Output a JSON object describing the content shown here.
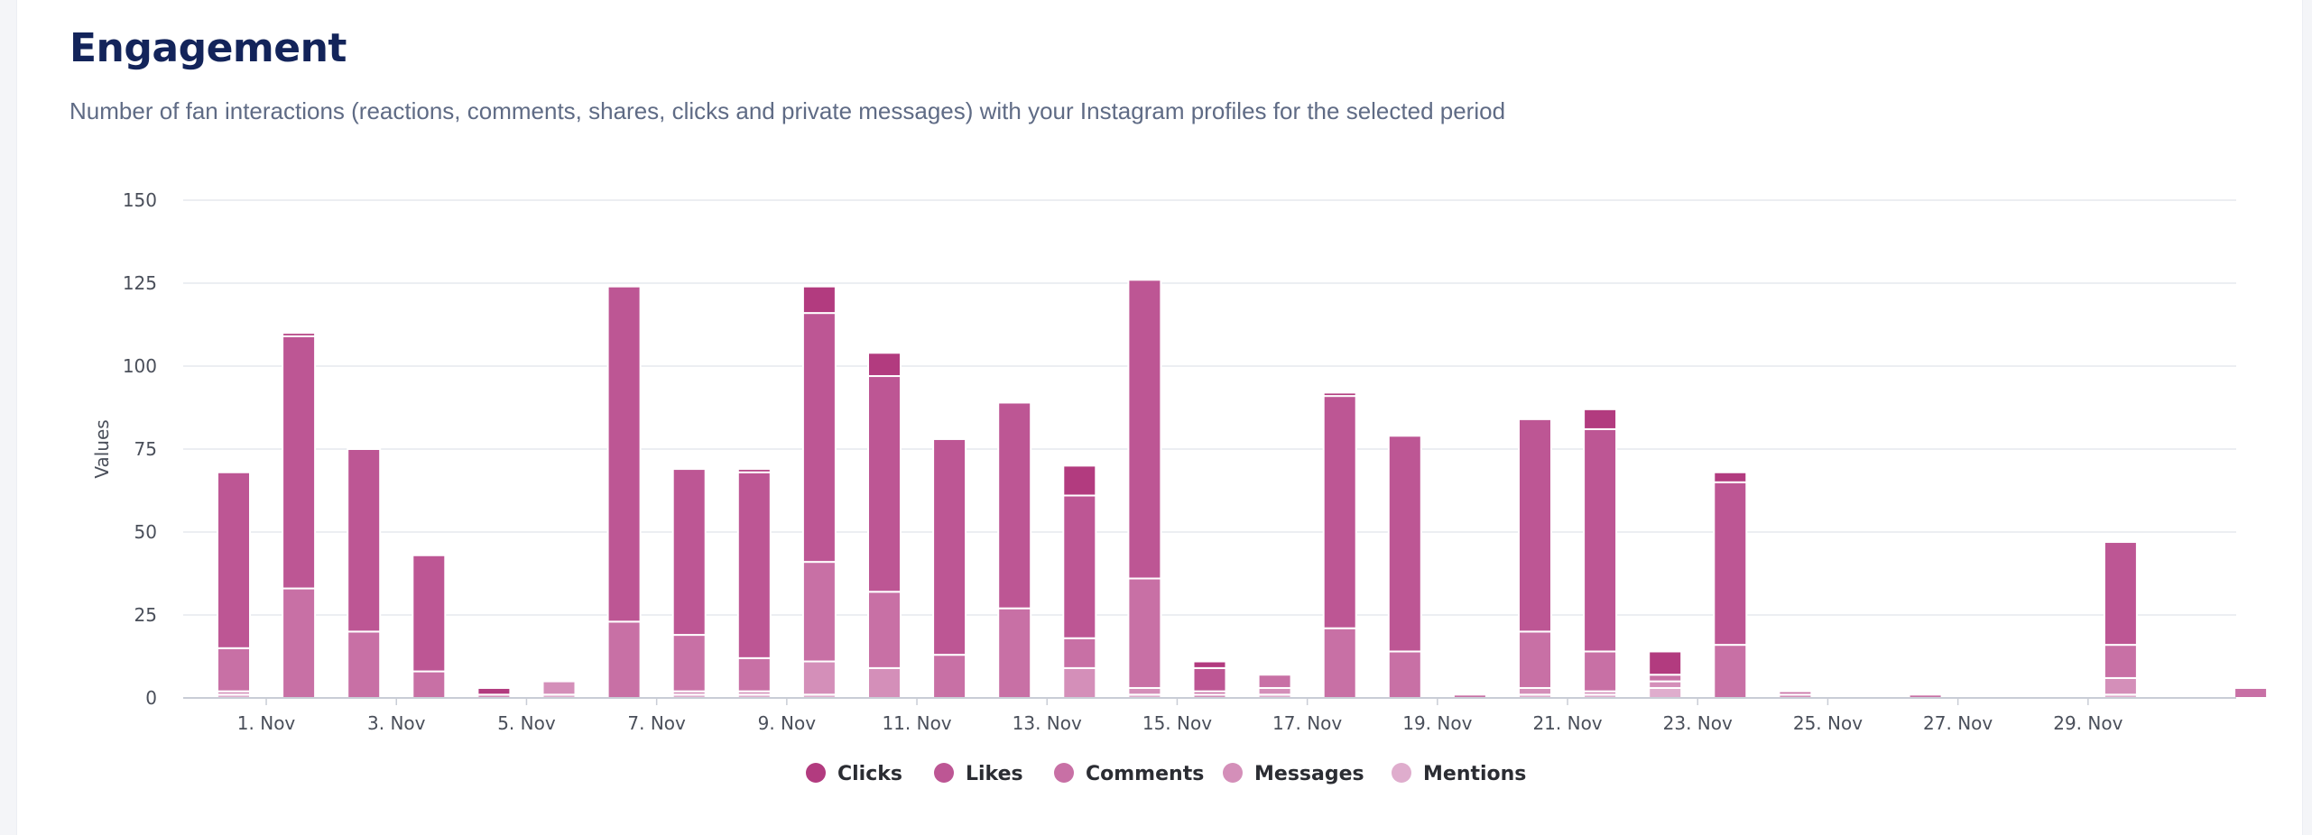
{
  "header": {
    "title": "Engagement",
    "subtitle": "Number of fan interactions (reactions, comments, shares, clicks and private messages) with your Instagram profiles for the selected period"
  },
  "chart_data": {
    "type": "bar",
    "stacked": true,
    "title": "Engagement",
    "ylabel": "Values",
    "xlabel": "",
    "ylim": [
      0,
      150
    ],
    "yticks": [
      0,
      25,
      50,
      75,
      100,
      125,
      150
    ],
    "categories": [
      "1. Nov",
      "2. Nov",
      "3. Nov",
      "4. Nov",
      "5. Nov",
      "6. Nov",
      "7. Nov",
      "8. Nov",
      "9. Nov",
      "10. Nov",
      "11. Nov",
      "12. Nov",
      "13. Nov",
      "14. Nov",
      "15. Nov",
      "16. Nov",
      "17. Nov",
      "18. Nov",
      "19. Nov",
      "20. Nov",
      "21. Nov",
      "22. Nov",
      "23. Nov",
      "24. Nov",
      "25. Nov",
      "26. Nov",
      "27. Nov",
      "28. Nov",
      "29. Nov",
      "30. Nov",
      "31. Nov",
      "32. Nov"
    ],
    "xtick_labels": [
      "1. Nov",
      "3. Nov",
      "5. Nov",
      "7. Nov",
      "9. Nov",
      "11. Nov",
      "13. Nov",
      "15. Nov",
      "17. Nov",
      "19. Nov",
      "21. Nov",
      "23. Nov",
      "25. Nov",
      "27. Nov",
      "29. Nov"
    ],
    "series": [
      {
        "name": "Clicks",
        "color": "#b23b7f",
        "values": [
          0,
          1,
          0,
          0,
          2,
          0,
          0,
          0,
          1,
          8,
          7,
          0,
          0,
          9,
          0,
          2,
          0,
          1,
          0,
          0,
          0,
          6,
          7,
          3,
          0,
          0,
          0,
          0,
          0,
          0,
          0,
          0
        ]
      },
      {
        "name": "Likes",
        "color": "#bd5694",
        "values": [
          53,
          76,
          55,
          35,
          0,
          0,
          101,
          50,
          56,
          75,
          65,
          65,
          62,
          43,
          90,
          7,
          0,
          70,
          65,
          0,
          64,
          67,
          0,
          49,
          0,
          0,
          0,
          0,
          0,
          31,
          0,
          0
        ]
      },
      {
        "name": "Comments",
        "color": "#c870a5",
        "values": [
          13,
          33,
          20,
          8,
          0,
          0,
          23,
          17,
          10,
          30,
          23,
          13,
          27,
          9,
          33,
          1,
          4,
          21,
          14,
          1,
          17,
          12,
          2,
          16,
          1,
          0,
          1,
          0,
          0,
          10,
          0,
          3
        ]
      },
      {
        "name": "Messages",
        "color": "#d48fb9",
        "values": [
          1,
          0,
          0,
          0,
          1,
          4,
          0,
          1,
          1,
          10,
          9,
          0,
          0,
          9,
          2,
          1,
          2,
          0,
          0,
          0,
          2,
          1,
          2,
          0,
          1,
          0,
          0,
          0,
          0,
          5,
          0,
          0
        ]
      },
      {
        "name": "Mentions",
        "color": "#dfadcd",
        "values": [
          1,
          0,
          0,
          0,
          0,
          1,
          0,
          1,
          1,
          1,
          0,
          0,
          0,
          0,
          1,
          0,
          1,
          0,
          0,
          0,
          1,
          1,
          3,
          0,
          0,
          0,
          0,
          0,
          0,
          1,
          0,
          0
        ]
      }
    ],
    "legend": {
      "position": "bottom-center",
      "entries": [
        "Clicks",
        "Likes",
        "Comments",
        "Messages",
        "Mentions"
      ]
    }
  }
}
